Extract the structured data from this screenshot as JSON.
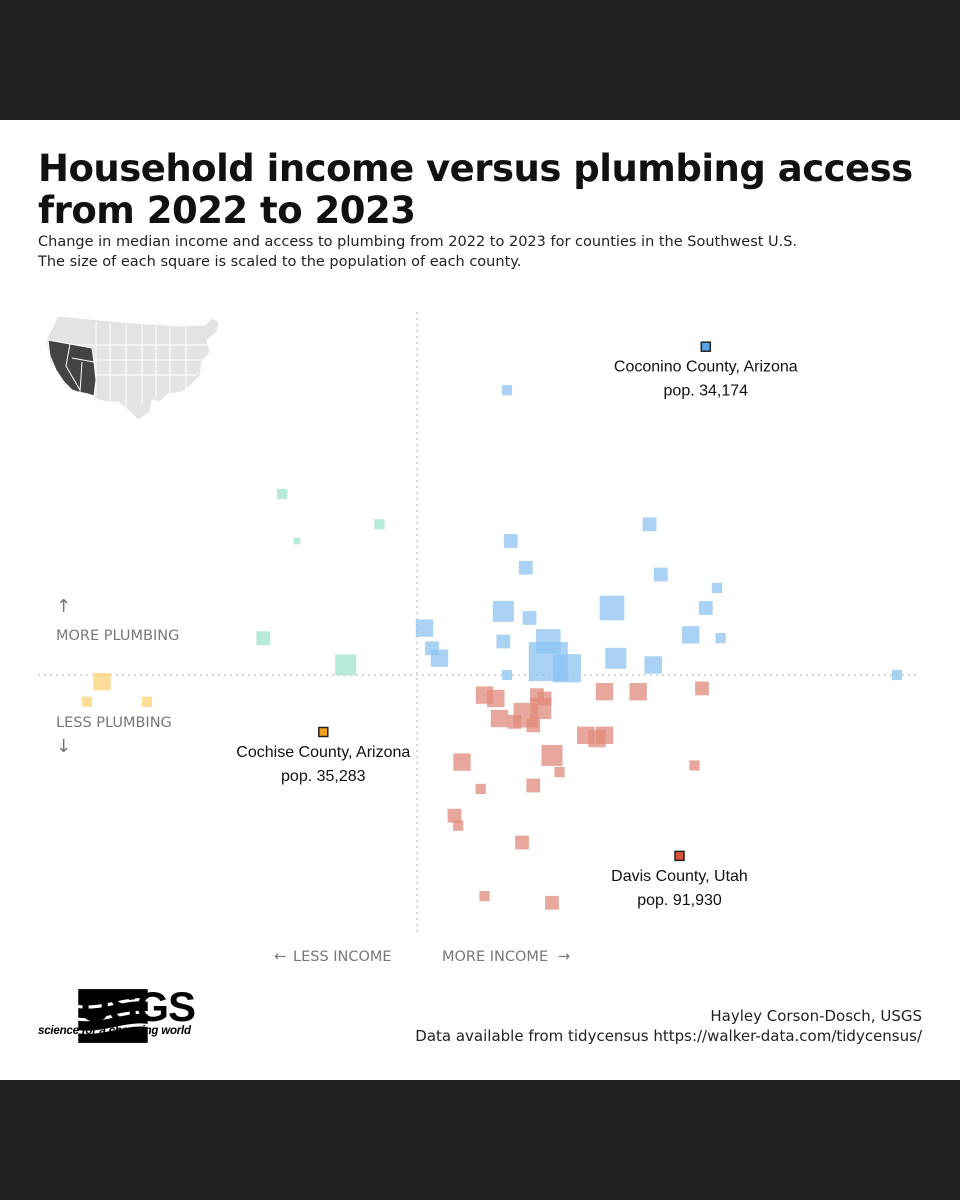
{
  "title": "Household income versus plumbing access from 2022 to 2023",
  "subtitle_lines": [
    "Change in median income and access to plumbing from 2022 to 2023 for counties in the Southwest U.S.",
    "The size of each square is scaled to the population of each county."
  ],
  "colors": {
    "more_income_more_plumbing": "#8cc3f2",
    "more_income_less_plumbing": "#e0897b",
    "less_income_more_plumbing": "#9fe3cb",
    "less_income_less_plumbing": "#fdd277",
    "highlight_blue": "#5ba3e6",
    "highlight_orange": "#f0a01e",
    "highlight_red": "#d9533b",
    "axis_label": "#777777",
    "map_states": "#e3e3e3",
    "map_southwest": "#444444"
  },
  "chart_data": {
    "type": "scatter",
    "title": "Household income versus plumbing access from 2022 to 2023",
    "xlabel": "",
    "ylabel": "",
    "axis_labels": {
      "more_plumbing": "MORE PLUMBING",
      "less_plumbing": "LESS PLUMBING",
      "less_income": "LESS INCOME",
      "more_income": "MORE INCOME",
      "arrow_up": "↑",
      "arrow_down": "↓",
      "arrow_left": "←",
      "arrow_right": "→"
    },
    "grid": false,
    "legend": "none",
    "inset_map": "southwest-states-highlighted",
    "notes": "Points are positioned by relative change in income (x) and plumbing access (y); axes carry no numeric ticks. Values below are read relative to the zero-change crossing, in arbitrary chart units (x: -1 to 1.3, y: -1 to 1). Size is a relative population scale (1-10).",
    "points": [
      {
        "x": 0.77,
        "y": 0.98,
        "size": 3,
        "group": "more_income_more_plumbing",
        "highlight": true,
        "label": "Coconino County, Arizona",
        "pop": "pop. 34,174"
      },
      {
        "x": 0.24,
        "y": 0.85,
        "size": 2,
        "group": "more_income_more_plumbing"
      },
      {
        "x": 0.62,
        "y": 0.45,
        "size": 3,
        "group": "more_income_more_plumbing"
      },
      {
        "x": 0.25,
        "y": 0.4,
        "size": 3,
        "group": "more_income_more_plumbing"
      },
      {
        "x": 0.29,
        "y": 0.32,
        "size": 3,
        "group": "more_income_more_plumbing"
      },
      {
        "x": 0.65,
        "y": 0.3,
        "size": 3,
        "group": "more_income_more_plumbing"
      },
      {
        "x": 0.8,
        "y": 0.26,
        "size": 2,
        "group": "more_income_more_plumbing"
      },
      {
        "x": 0.77,
        "y": 0.2,
        "size": 3,
        "group": "more_income_more_plumbing"
      },
      {
        "x": 0.23,
        "y": 0.19,
        "size": 5,
        "group": "more_income_more_plumbing"
      },
      {
        "x": 0.3,
        "y": 0.17,
        "size": 3,
        "group": "more_income_more_plumbing"
      },
      {
        "x": 0.52,
        "y": 0.2,
        "size": 6,
        "group": "more_income_more_plumbing"
      },
      {
        "x": 0.02,
        "y": 0.14,
        "size": 4,
        "group": "more_income_more_plumbing"
      },
      {
        "x": 0.73,
        "y": 0.12,
        "size": 4,
        "group": "more_income_more_plumbing"
      },
      {
        "x": 0.81,
        "y": 0.11,
        "size": 2,
        "group": "more_income_more_plumbing"
      },
      {
        "x": 0.23,
        "y": 0.1,
        "size": 3,
        "group": "more_income_more_plumbing"
      },
      {
        "x": 0.04,
        "y": 0.08,
        "size": 3,
        "group": "more_income_more_plumbing"
      },
      {
        "x": 0.35,
        "y": 0.1,
        "size": 6,
        "group": "more_income_more_plumbing"
      },
      {
        "x": 0.06,
        "y": 0.05,
        "size": 4,
        "group": "more_income_more_plumbing"
      },
      {
        "x": 0.53,
        "y": 0.05,
        "size": 5,
        "group": "more_income_more_plumbing"
      },
      {
        "x": 0.63,
        "y": 0.03,
        "size": 4,
        "group": "more_income_more_plumbing"
      },
      {
        "x": 0.35,
        "y": 0.04,
        "size": 10,
        "group": "more_income_more_plumbing"
      },
      {
        "x": 0.4,
        "y": 0.02,
        "size": 7,
        "group": "more_income_more_plumbing"
      },
      {
        "x": 0.24,
        "y": 0.0,
        "size": 2,
        "group": "more_income_more_plumbing"
      },
      {
        "x": 1.28,
        "y": 0.0,
        "size": 2,
        "group": "more_income_more_plumbing"
      },
      {
        "x": 0.7,
        "y": -0.54,
        "size": 3,
        "group": "more_income_less_plumbing",
        "highlight": true,
        "label": "Davis County, Utah",
        "pop": "pop. 91,930"
      },
      {
        "x": 0.18,
        "y": -0.06,
        "size": 4,
        "group": "more_income_less_plumbing"
      },
      {
        "x": 0.21,
        "y": -0.07,
        "size": 4,
        "group": "more_income_less_plumbing"
      },
      {
        "x": 0.32,
        "y": -0.06,
        "size": 3,
        "group": "more_income_less_plumbing"
      },
      {
        "x": 0.34,
        "y": -0.07,
        "size": 3,
        "group": "more_income_less_plumbing"
      },
      {
        "x": 0.5,
        "y": -0.05,
        "size": 4,
        "group": "more_income_less_plumbing"
      },
      {
        "x": 0.59,
        "y": -0.05,
        "size": 4,
        "group": "more_income_less_plumbing"
      },
      {
        "x": 0.76,
        "y": -0.04,
        "size": 3,
        "group": "more_income_less_plumbing"
      },
      {
        "x": 0.33,
        "y": -0.1,
        "size": 5,
        "group": "more_income_less_plumbing"
      },
      {
        "x": 0.29,
        "y": -0.12,
        "size": 6,
        "group": "more_income_less_plumbing"
      },
      {
        "x": 0.22,
        "y": -0.13,
        "size": 4,
        "group": "more_income_less_plumbing"
      },
      {
        "x": 0.26,
        "y": -0.14,
        "size": 3,
        "group": "more_income_less_plumbing"
      },
      {
        "x": 0.31,
        "y": -0.15,
        "size": 3,
        "group": "more_income_less_plumbing"
      },
      {
        "x": 0.45,
        "y": -0.18,
        "size": 4,
        "group": "more_income_less_plumbing"
      },
      {
        "x": 0.5,
        "y": -0.18,
        "size": 4,
        "group": "more_income_less_plumbing"
      },
      {
        "x": 0.48,
        "y": -0.19,
        "size": 4,
        "group": "more_income_less_plumbing"
      },
      {
        "x": 0.36,
        "y": -0.24,
        "size": 5,
        "group": "more_income_less_plumbing"
      },
      {
        "x": 0.12,
        "y": -0.26,
        "size": 4,
        "group": "more_income_less_plumbing"
      },
      {
        "x": 0.74,
        "y": -0.27,
        "size": 2,
        "group": "more_income_less_plumbing"
      },
      {
        "x": 0.38,
        "y": -0.29,
        "size": 2,
        "group": "more_income_less_plumbing"
      },
      {
        "x": 0.17,
        "y": -0.34,
        "size": 2,
        "group": "more_income_less_plumbing"
      },
      {
        "x": 0.31,
        "y": -0.33,
        "size": 3,
        "group": "more_income_less_plumbing"
      },
      {
        "x": 0.1,
        "y": -0.42,
        "size": 3,
        "group": "more_income_less_plumbing"
      },
      {
        "x": 0.11,
        "y": -0.45,
        "size": 2,
        "group": "more_income_less_plumbing"
      },
      {
        "x": 0.28,
        "y": -0.5,
        "size": 3,
        "group": "more_income_less_plumbing"
      },
      {
        "x": 0.18,
        "y": -0.66,
        "size": 2,
        "group": "more_income_less_plumbing"
      },
      {
        "x": 0.36,
        "y": -0.68,
        "size": 3,
        "group": "more_income_less_plumbing"
      },
      {
        "x": -0.25,
        "y": -0.17,
        "size": 3,
        "group": "less_income_less_plumbing",
        "highlight": true,
        "label": "Cochise County, Arizona",
        "pop": "pop. 35,283"
      },
      {
        "x": -0.84,
        "y": -0.02,
        "size": 4,
        "group": "less_income_less_plumbing"
      },
      {
        "x": -0.88,
        "y": -0.08,
        "size": 2,
        "group": "less_income_less_plumbing"
      },
      {
        "x": -0.72,
        "y": -0.08,
        "size": 2,
        "group": "less_income_less_plumbing"
      },
      {
        "x": -0.36,
        "y": 0.54,
        "size": 2,
        "group": "less_income_more_plumbing"
      },
      {
        "x": -0.1,
        "y": 0.45,
        "size": 2,
        "group": "less_income_more_plumbing"
      },
      {
        "x": -0.32,
        "y": 0.4,
        "size": 1,
        "group": "less_income_more_plumbing"
      },
      {
        "x": -0.41,
        "y": 0.11,
        "size": 3,
        "group": "less_income_more_plumbing"
      },
      {
        "x": -0.19,
        "y": 0.03,
        "size": 5,
        "group": "less_income_more_plumbing"
      }
    ]
  },
  "usgs": {
    "wordmark": "USGS",
    "tagline": "science for a changing world"
  },
  "credits": {
    "author": "Hayley Corson-Dosch, USGS",
    "data_source": "Data available from tidycensus https://walker-data.com/tidycensus/"
  }
}
